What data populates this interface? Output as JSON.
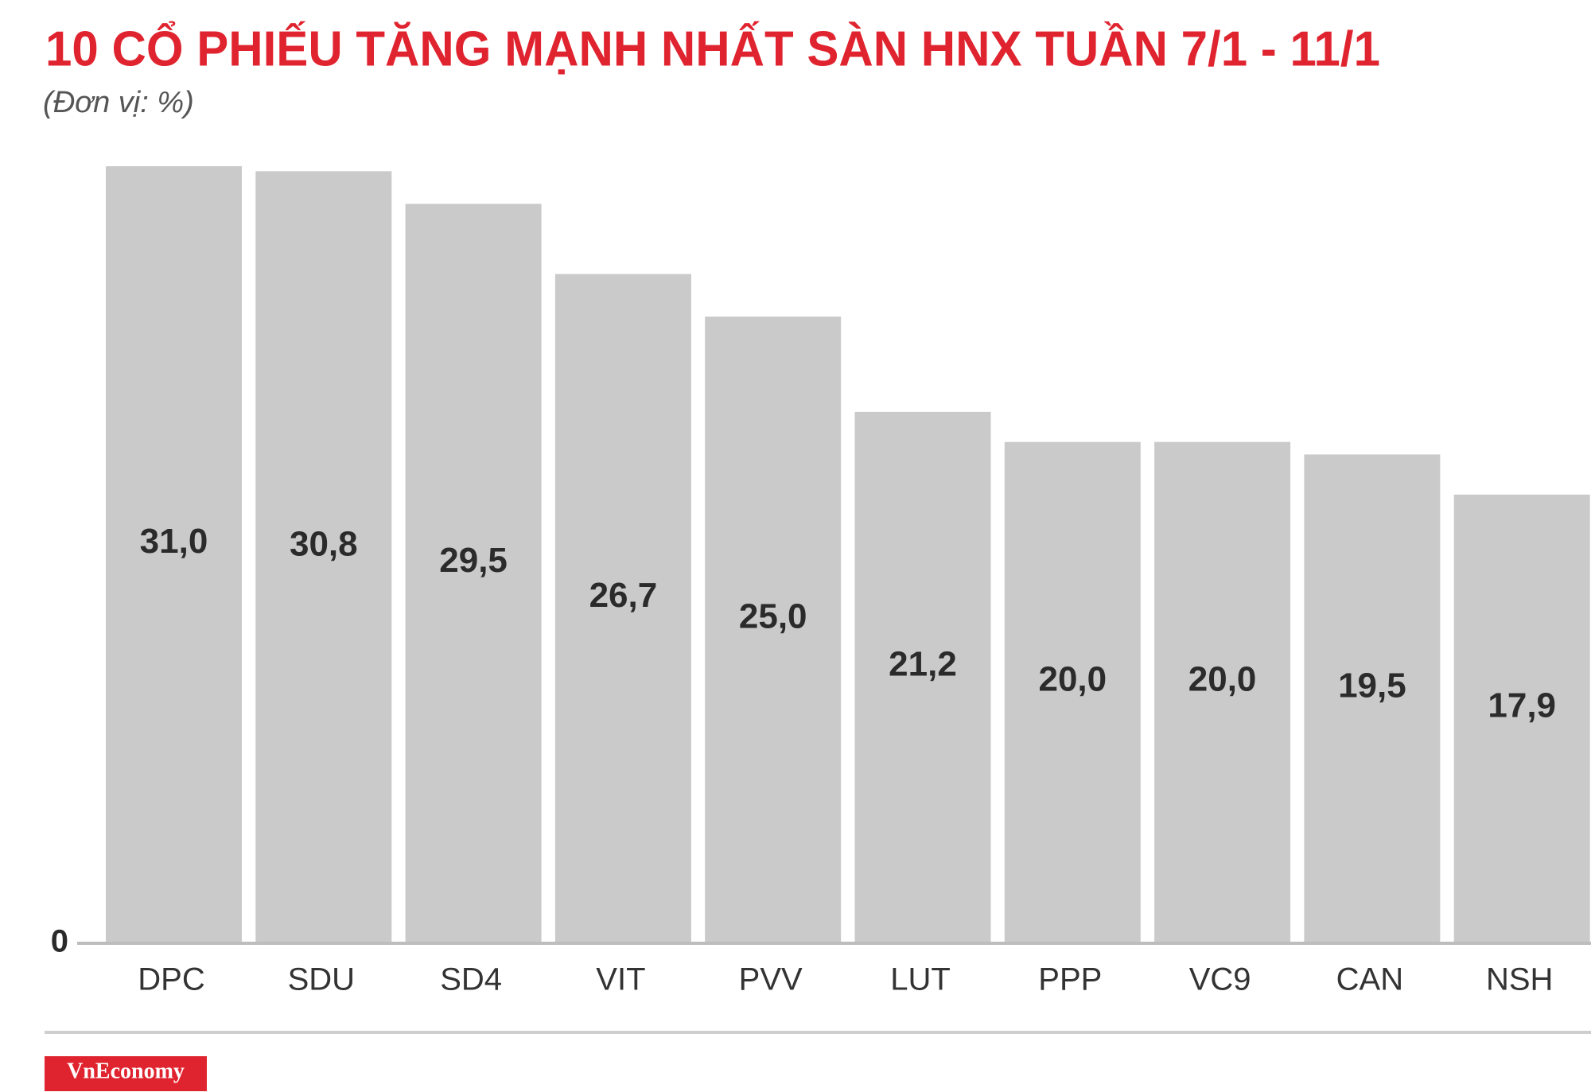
{
  "chart_data": {
    "type": "bar",
    "title": "10 CỔ PHIẾU TĂNG MẠNH NHẤT SÀN HNX TUẦN 7/1 - 11/1",
    "subtitle": "(Đơn vị: %)",
    "categories": [
      "DPC",
      "SDU",
      "SD4",
      "VIT",
      "PVV",
      "LUT",
      "PPP",
      "VC9",
      "CAN",
      "NSH"
    ],
    "values": [
      31.0,
      30.8,
      29.5,
      26.7,
      25.0,
      21.2,
      20.0,
      20.0,
      19.5,
      17.9
    ],
    "value_labels": [
      "31,0",
      "30,8",
      "29,5",
      "26,7",
      "25,0",
      "21,2",
      "20,0",
      "20,0",
      "19,5",
      "17,9"
    ],
    "color": "#cbcacb",
    "ylim": [
      0,
      31
    ],
    "yticks": [
      0
    ],
    "logo": "VnEconomy"
  }
}
